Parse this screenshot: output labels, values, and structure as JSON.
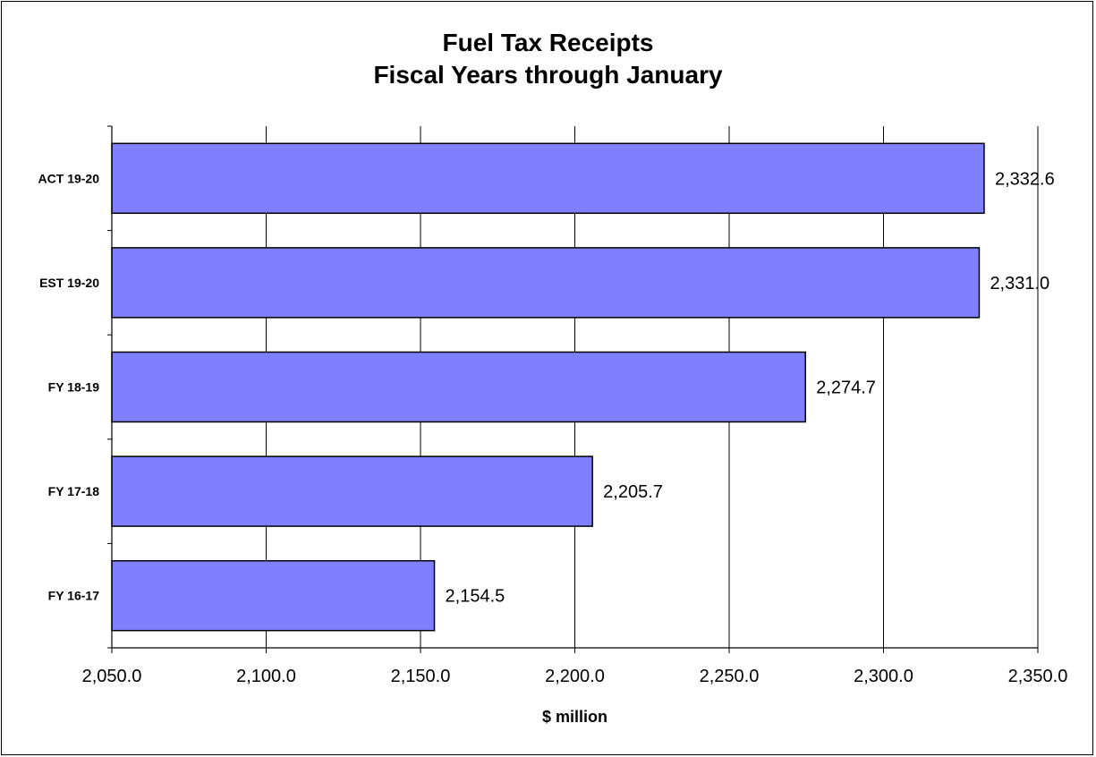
{
  "chart_data": {
    "type": "bar",
    "orientation": "horizontal",
    "title": "Fuel Tax Receipts",
    "subtitle": "Fiscal Years through January",
    "xlabel": "$ million",
    "ylabel": "",
    "categories": [
      "ACT 19-20",
      "EST 19-20",
      "FY 18-19",
      "FY 17-18",
      "FY 16-17"
    ],
    "values": [
      2332.6,
      2331.0,
      2274.7,
      2205.7,
      2154.5
    ],
    "value_labels": [
      "2,332.6",
      "2,331.0",
      "2,274.7",
      "2,205.7",
      "2,154.5"
    ],
    "xlim": [
      2050.0,
      2350.0
    ],
    "xticks": [
      2050.0,
      2100.0,
      2150.0,
      2200.0,
      2250.0,
      2300.0,
      2350.0
    ],
    "xtick_labels": [
      "2,050.0",
      "2,100.0",
      "2,150.0",
      "2,200.0",
      "2,250.0",
      "2,300.0",
      "2,350.0"
    ],
    "grid": "vertical",
    "legend": "none",
    "bar_color": "#8080FF"
  }
}
